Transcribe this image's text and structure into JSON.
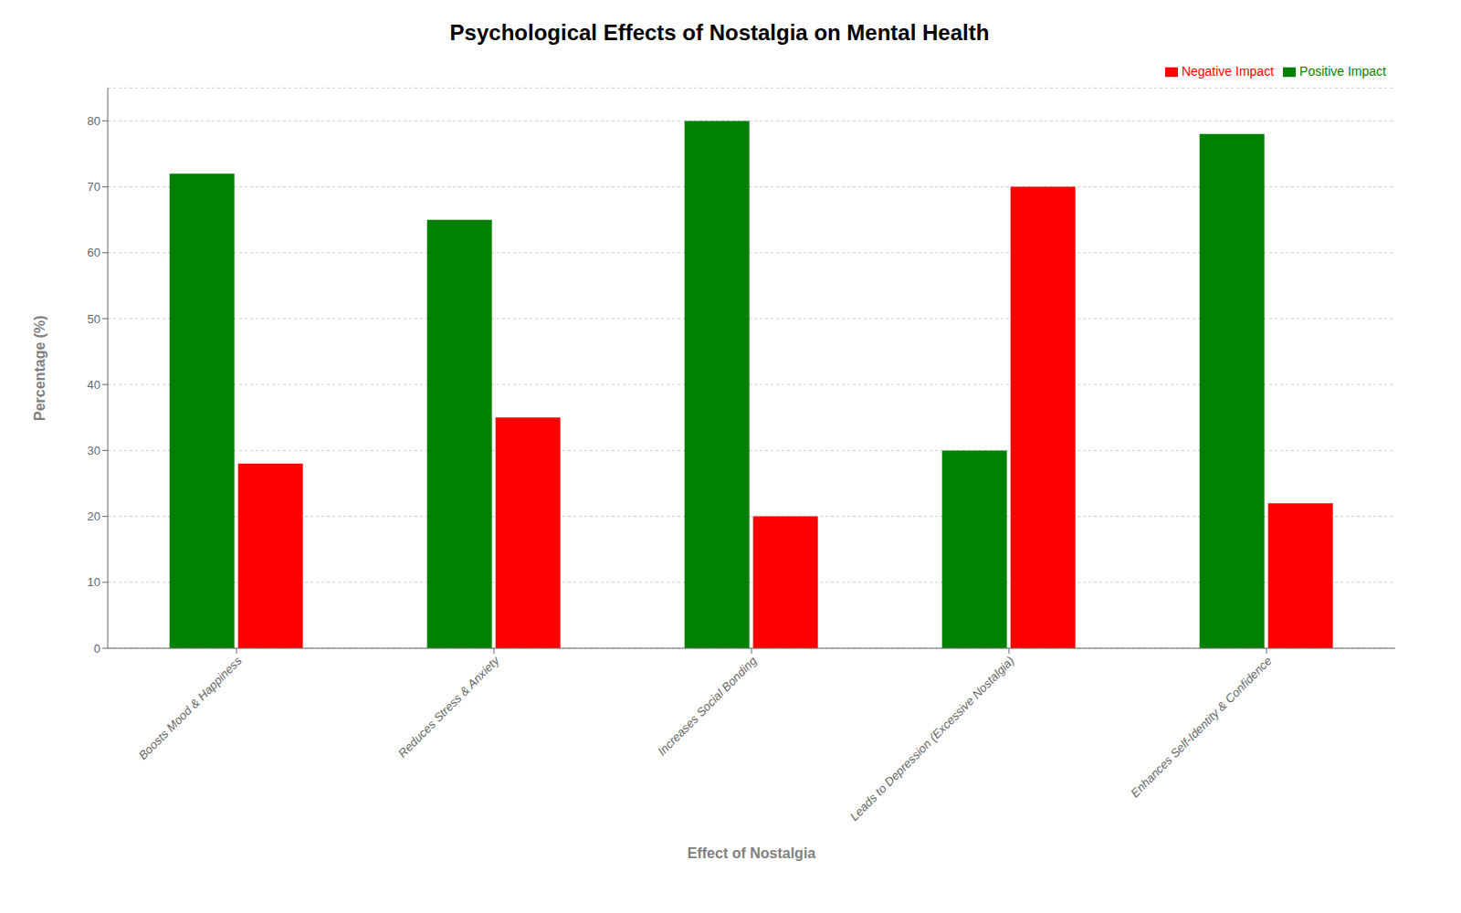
{
  "chart_data": {
    "type": "bar",
    "title": "Psychological Effects of Nostalgia on Mental Health",
    "xlabel": "Effect of Nostalgia",
    "ylabel": "Percentage (%)",
    "categories": [
      "Boosts Mood & Happiness",
      "Reduces Stress & Anxiety",
      "Increases Social Bonding",
      "Leads to Depression (Excessive Nostalgia)",
      "Enhances Self-Identity & Confidence"
    ],
    "series": [
      {
        "name": "Positive Impact",
        "color": "#008000",
        "values": [
          72,
          65,
          80,
          30,
          78
        ]
      },
      {
        "name": "Negative Impact",
        "color": "#ff0000",
        "values": [
          28,
          35,
          20,
          70,
          22
        ]
      }
    ],
    "ylim": [
      0,
      85
    ],
    "yticks": [
      0,
      10,
      20,
      30,
      40,
      50,
      60,
      70,
      80
    ],
    "grid": true,
    "legend": "upper right"
  }
}
